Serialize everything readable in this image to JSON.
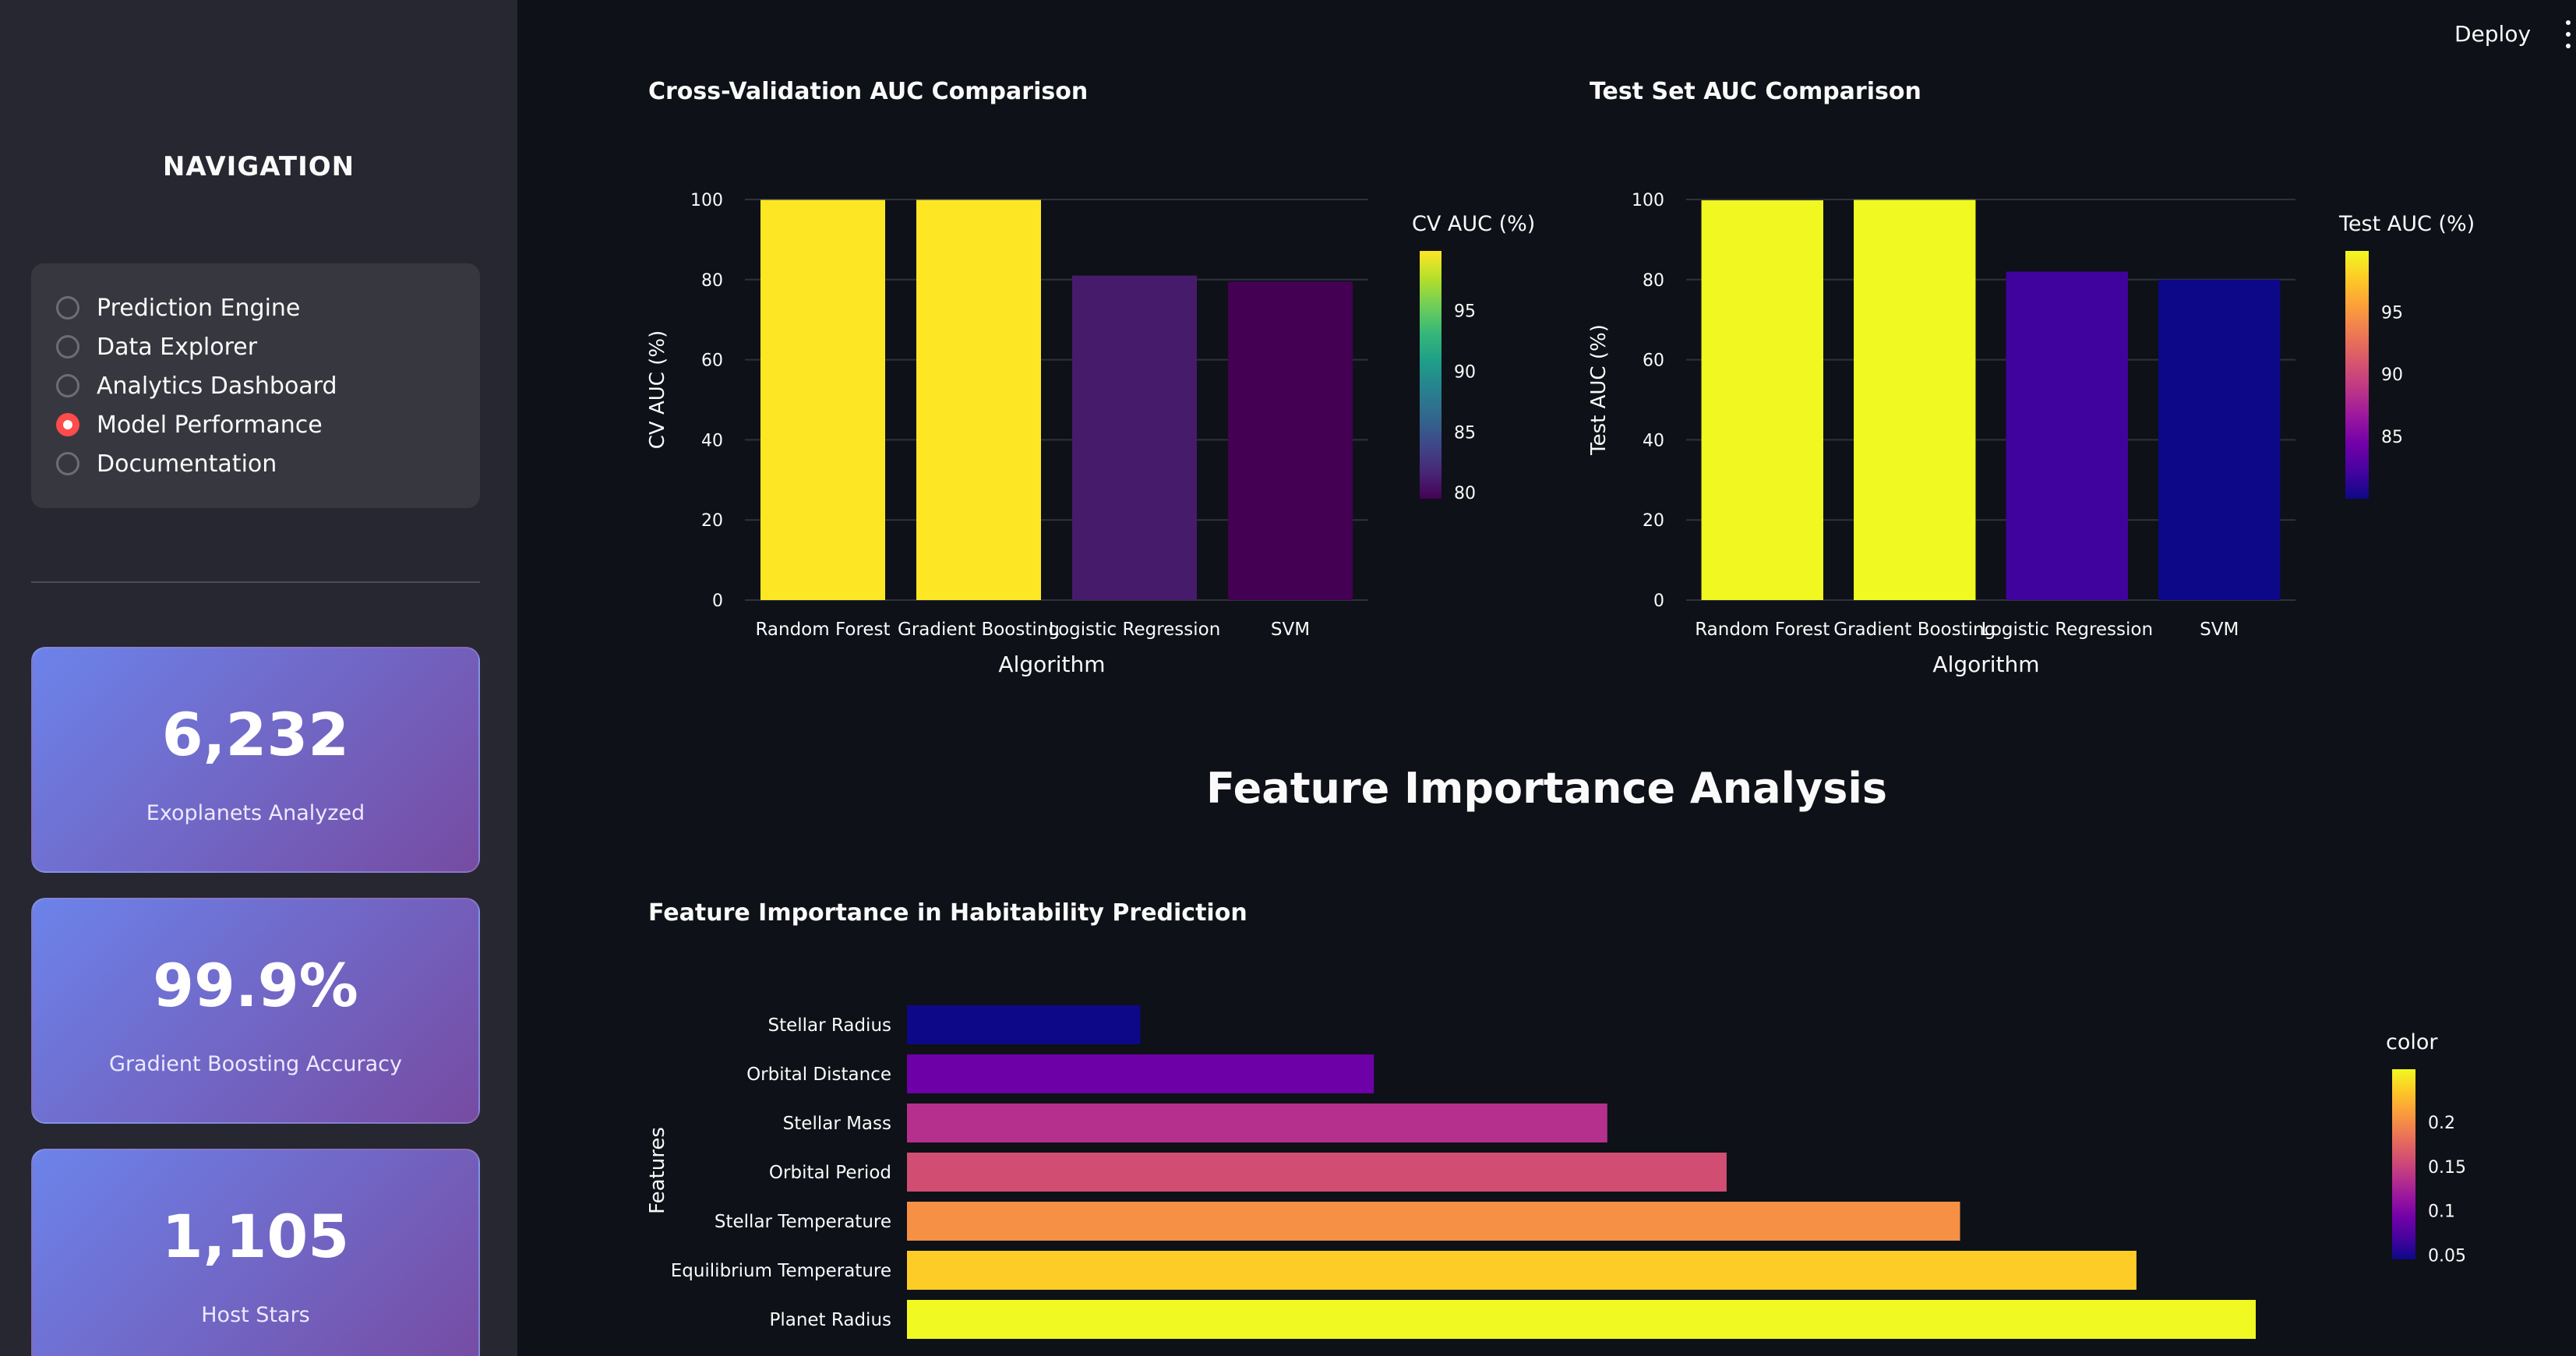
{
  "sidebar": {
    "title": "NAVIGATION",
    "nav_items": [
      {
        "label": "Prediction Engine",
        "selected": false
      },
      {
        "label": "Data Explorer",
        "selected": false
      },
      {
        "label": "Analytics Dashboard",
        "selected": false
      },
      {
        "label": "Model Performance",
        "selected": true
      },
      {
        "label": "Documentation",
        "selected": false
      }
    ],
    "metrics": [
      {
        "value": "6,232",
        "label": "Exoplanets Analyzed"
      },
      {
        "value": "99.9%",
        "label": "Gradient Boosting Accuracy"
      },
      {
        "value": "1,105",
        "label": "Host Stars"
      }
    ]
  },
  "header": {
    "deploy_label": "Deploy",
    "menu_icon": "kebab-menu-icon"
  },
  "main": {
    "feature_section_heading": "Feature Importance Analysis"
  },
  "colors": {
    "accent": "#ff4b4b",
    "card_gradient_start": "#6c83ea",
    "card_gradient_end": "#764ba2"
  },
  "chart_data": [
    {
      "id": "cv",
      "type": "bar",
      "title": "Cross-Validation AUC Comparison",
      "xlabel": "Algorithm",
      "ylabel": "CV AUC (%)",
      "categories": [
        "Random Forest",
        "Gradient Boosting",
        "Logistic Regression",
        "SVM"
      ],
      "values": [
        99.9,
        99.9,
        81.0,
        79.5
      ],
      "ylim": [
        0,
        100
      ],
      "yticks": [
        0,
        20,
        40,
        60,
        80,
        100
      ],
      "colorscale": "viridis",
      "colorbar": {
        "title": "CV AUC (%)",
        "range": [
          79.5,
          99.9
        ],
        "ticks": [
          80,
          85,
          90,
          95
        ]
      },
      "grid": true
    },
    {
      "id": "test",
      "type": "bar",
      "title": "Test Set AUC Comparison",
      "xlabel": "Algorithm",
      "ylabel": "Test AUC (%)",
      "categories": [
        "Random Forest",
        "Gradient Boosting",
        "Logistic Regression",
        "SVM"
      ],
      "values": [
        99.8,
        99.9,
        82.0,
        80.0
      ],
      "ylim": [
        0,
        100
      ],
      "yticks": [
        0,
        20,
        40,
        60,
        80,
        100
      ],
      "colorscale": "plasma",
      "colorbar": {
        "title": "Test AUC (%)",
        "range": [
          80.0,
          99.9
        ],
        "ticks": [
          85,
          90,
          95
        ]
      },
      "grid": true
    },
    {
      "id": "features",
      "type": "bar",
      "orientation": "horizontal",
      "title": "Feature Importance in Habitability Prediction",
      "ylabel": "Features",
      "categories": [
        "Stellar Radius",
        "Orbital Distance",
        "Stellar Mass",
        "Orbital Period",
        "Stellar Temperature",
        "Equilibrium Temperature",
        "Planet Radius"
      ],
      "values": [
        0.045,
        0.09,
        0.135,
        0.158,
        0.203,
        0.237,
        0.26
      ],
      "colorscale": "plasma",
      "colorbar": {
        "title": "color",
        "range": [
          0.045,
          0.26
        ],
        "ticks": [
          0.05,
          0.1,
          0.15,
          0.2
        ],
        "tick_labels": [
          "0.05",
          "0.1",
          "0.15",
          "0.2"
        ]
      }
    }
  ]
}
